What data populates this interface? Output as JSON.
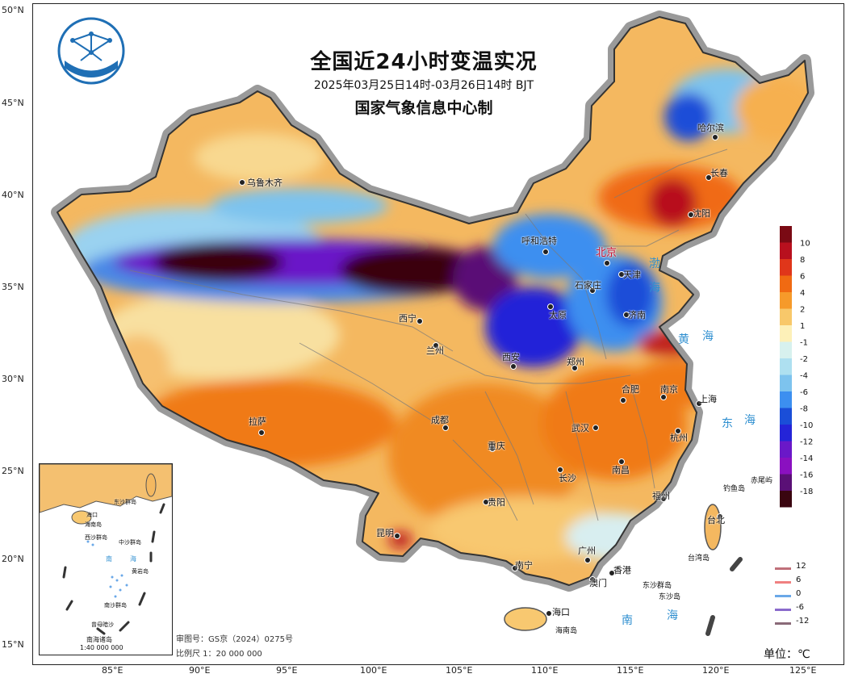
{
  "title": "全国近24小时变温实况",
  "subtitle": "2025年03月25日14时-03月26日14时 BJT",
  "producer": "国家气象信息中心制",
  "latitude_ticks": [
    "50°N",
    "45°N",
    "40°N",
    "35°N",
    "30°N",
    "25°N",
    "20°N",
    "15°N"
  ],
  "longitude_ticks": [
    "85°E",
    "90°E",
    "95°E",
    "100°E",
    "105°E",
    "110°E",
    "115°E",
    "120°E",
    "125°E"
  ],
  "cities": [
    "乌鲁木齐",
    "呼和浩特",
    "北京",
    "天津",
    "石家庄",
    "太原",
    "济南",
    "西宁",
    "兰州",
    "西安",
    "郑州",
    "哈尔滨",
    "长春",
    "沈阳",
    "合肥",
    "南京",
    "上海",
    "拉萨",
    "成都",
    "重庆",
    "武汉",
    "杭州",
    "长沙",
    "南昌",
    "贵阳",
    "福州",
    "台北",
    "昆明",
    "广州",
    "南宁",
    "香港",
    "澳门",
    "海口"
  ],
  "seas": [
    "渤",
    "海",
    "黄",
    "海",
    "东",
    "海",
    "南",
    "海"
  ],
  "islands": [
    "钓鱼岛",
    "赤尾屿",
    "台湾岛",
    "东沙群岛",
    "东沙岛",
    "海南岛"
  ],
  "colorbar": {
    "labels": [
      "10",
      "8",
      "6",
      "4",
      "2",
      "1",
      "-1",
      "-2",
      "-4",
      "-6",
      "-8",
      "-10",
      "-12",
      "-14",
      "-16",
      "-18"
    ],
    "colors": [
      "#7a0a14",
      "#b8101e",
      "#e0361a",
      "#f06a12",
      "#f69a2a",
      "#f8c86a",
      "#fdf0b8",
      "#d7f1ee",
      "#aee0f0",
      "#7dc3ee",
      "#3c8ff0",
      "#1a4ed8",
      "#2424d8",
      "#6a18c8",
      "#8a10c0",
      "#5a1076",
      "#3a0610"
    ]
  },
  "contour_legend": [
    {
      "label": "12",
      "color": "#c0707a"
    },
    {
      "label": "6",
      "color": "#f08080"
    },
    {
      "label": "0",
      "color": "#6aa8e8"
    },
    {
      "label": "-6",
      "color": "#8a6acc"
    },
    {
      "label": "-12",
      "color": "#8a6a78"
    }
  ],
  "inset": {
    "title": "南海诸岛",
    "scale": "1:40 000 000",
    "labels": [
      "海口",
      "海南岛",
      "西沙群岛",
      "中沙群岛",
      "东沙群岛",
      "南",
      "海",
      "黄岩岛",
      "南沙群岛",
      "曾母暗沙"
    ]
  },
  "footer": {
    "review_number": "审图号：GS京（2024）0275号",
    "scale": "比例尺 1：20 000 000"
  },
  "unit": "单位：℃"
}
